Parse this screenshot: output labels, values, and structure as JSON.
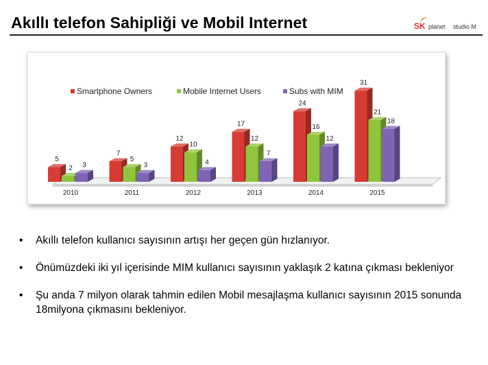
{
  "header": {
    "title": "Akıllı telefon Sahipliği ve Mobil Internet",
    "logo_sk": "SK",
    "logo_planet": "planet",
    "logo_studio": "studio M"
  },
  "chart_data": {
    "type": "bar",
    "categories": [
      "2010",
      "2011",
      "2012",
      "2013",
      "2014",
      "2015"
    ],
    "series": [
      {
        "name": "Smartphone Owners",
        "color": "#d63c33",
        "values": [
          5,
          7,
          12,
          17,
          24,
          31
        ]
      },
      {
        "name": "Mobile Internet Users",
        "color": "#8fc43c",
        "values": [
          2,
          5,
          10,
          12,
          16,
          21
        ]
      },
      {
        "name": "Subs with MIM",
        "color": "#7f63b5",
        "values": [
          3,
          3,
          4,
          7,
          12,
          18
        ]
      }
    ],
    "ylim": [
      0,
      35
    ],
    "legend_position": "top-left",
    "grid": false,
    "data_labels": true,
    "style": "3d"
  },
  "bullets": [
    {
      "marker": "•",
      "text": "Akıllı telefon kullanıcı sayısının artışı her geçen gün hızlanıyor."
    },
    {
      "marker": "•",
      "text": "Önümüzdeki iki yıl içerisinde MIM kullanıcı sayısının yaklaşık 2 katına çıkması bekleniyor"
    },
    {
      "marker": "•",
      "text": "Şu anda 7 milyon olarak tahmin edilen Mobil mesajlaşma kullanıcı sayısının 2015 sonunda 18milyona çıkmasını bekleniyor."
    }
  ]
}
